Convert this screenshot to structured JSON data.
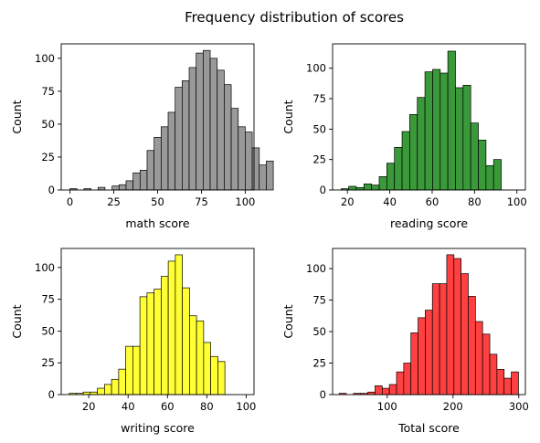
{
  "figure": {
    "title": "Frequency distribution of scores"
  },
  "chart_data": [
    {
      "type": "histogram",
      "xlabel": "math score",
      "ylabel": "Count",
      "color": "#999999",
      "xlim": [
        -5,
        105
      ],
      "ylim": [
        0,
        111
      ],
      "xticks": [
        0,
        25,
        50,
        75,
        100
      ],
      "yticks": [
        0,
        25,
        50,
        75,
        100
      ],
      "bin_start": 0,
      "bin_width": 4,
      "values": [
        1,
        0,
        1,
        0,
        2,
        0,
        3,
        4,
        7,
        13,
        15,
        30,
        40,
        48,
        59,
        78,
        83,
        93,
        104,
        106,
        100,
        91,
        80,
        62,
        48,
        44,
        32,
        19,
        22
      ]
    },
    {
      "type": "histogram",
      "xlabel": "reading score",
      "ylabel": "Count",
      "color": "#3a9a3a",
      "xlim": [
        13,
        104
      ],
      "ylim": [
        0,
        120
      ],
      "xticks": [
        20,
        40,
        60,
        80,
        100
      ],
      "yticks": [
        0,
        25,
        50,
        75,
        100
      ],
      "bin_start": 17,
      "bin_width": 3.6,
      "values": [
        1,
        3,
        2,
        5,
        4,
        11,
        22,
        35,
        48,
        62,
        76,
        97,
        99,
        96,
        114,
        84,
        86,
        55,
        41,
        20,
        25
      ]
    },
    {
      "type": "histogram",
      "xlabel": "writing score",
      "ylabel": "Count",
      "color": "#ffff33",
      "xlim": [
        6,
        104
      ],
      "ylim": [
        0,
        115
      ],
      "xticks": [
        20,
        40,
        60,
        80,
        100
      ],
      "yticks": [
        0,
        25,
        50,
        75,
        100
      ],
      "bin_start": 10,
      "bin_width": 3.6,
      "values": [
        1,
        1,
        2,
        2,
        5,
        8,
        12,
        20,
        38,
        38,
        77,
        80,
        83,
        93,
        105,
        110,
        84,
        62,
        58,
        41,
        30,
        26
      ]
    },
    {
      "type": "histogram",
      "xlabel": "Total score",
      "ylabel": "Count",
      "color": "#ff4040",
      "xlim": [
        17,
        310
      ],
      "ylim": [
        0,
        116
      ],
      "xticks": [
        100,
        200,
        300
      ],
      "yticks": [
        0,
        25,
        50,
        75,
        100
      ],
      "bin_start": 27,
      "bin_width": 10.9,
      "values": [
        1,
        0,
        1,
        1,
        2,
        7,
        5,
        8,
        18,
        25,
        49,
        61,
        67,
        88,
        88,
        111,
        108,
        96,
        78,
        58,
        48,
        32,
        20,
        13,
        18
      ]
    }
  ]
}
